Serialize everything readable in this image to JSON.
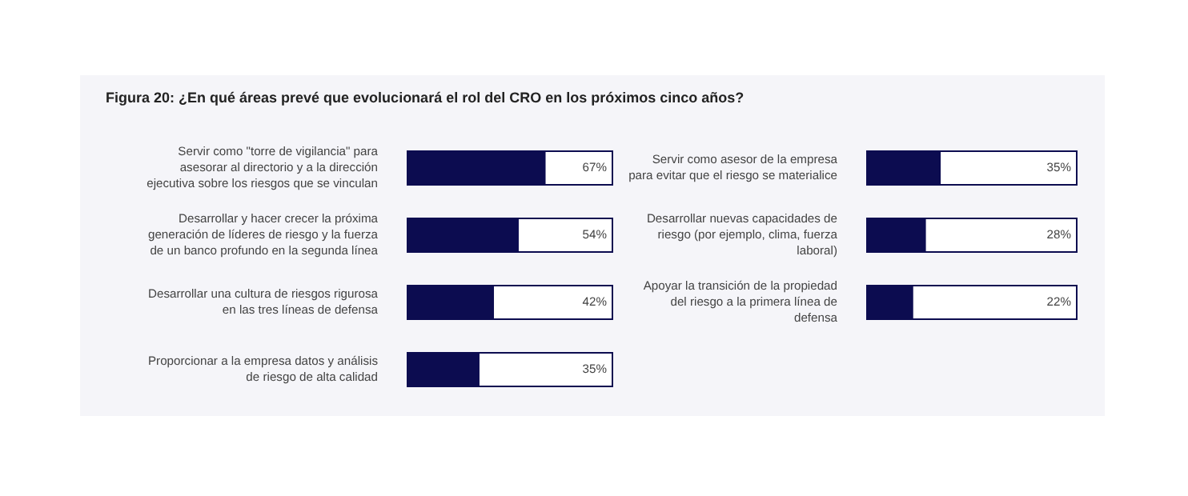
{
  "chart_data": [
    {
      "type": "bar",
      "orientation": "horizontal",
      "title": "Figura 20: ¿En qué áreas prevé que evolucionará el rol del CRO en los próximos cinco años?",
      "categories": [
        "Servir como \"torre de vigilancia\" para asesorar al directorio y a la dirección ejecutiva sobre los riesgos que se vinculan",
        "Desarrollar y hacer crecer la próxima generación de líderes de riesgo y la fuerza de un banco profundo en la segunda línea",
        "Desarrollar una cultura de riesgos rigurosa en las tres líneas de defensa",
        "Proporcionar a la empresa datos y análisis de riesgo de alta calidad"
      ],
      "values": [
        67,
        54,
        42,
        35
      ],
      "value_labels": [
        "67%",
        "54%",
        "42%",
        "35%"
      ],
      "color": "#0c0c50",
      "xlim": [
        0,
        100
      ],
      "tick_labels": "y"
    },
    {
      "type": "bar",
      "orientation": "horizontal",
      "categories": [
        "Servir como asesor de la empresa para evitar que el riesgo se materialice",
        "Desarrollar nuevas capacidades de riesgo (por ejemplo, clima, fuerza laboral)",
        "Apoyar la transición de la propiedad del riesgo a la primera línea de defensa"
      ],
      "values": [
        35,
        28,
        22
      ],
      "value_labels": [
        "35%",
        "28%",
        "22%"
      ],
      "color": "#0c0c50",
      "xlim": [
        0,
        100
      ],
      "tick_labels": "y"
    }
  ]
}
